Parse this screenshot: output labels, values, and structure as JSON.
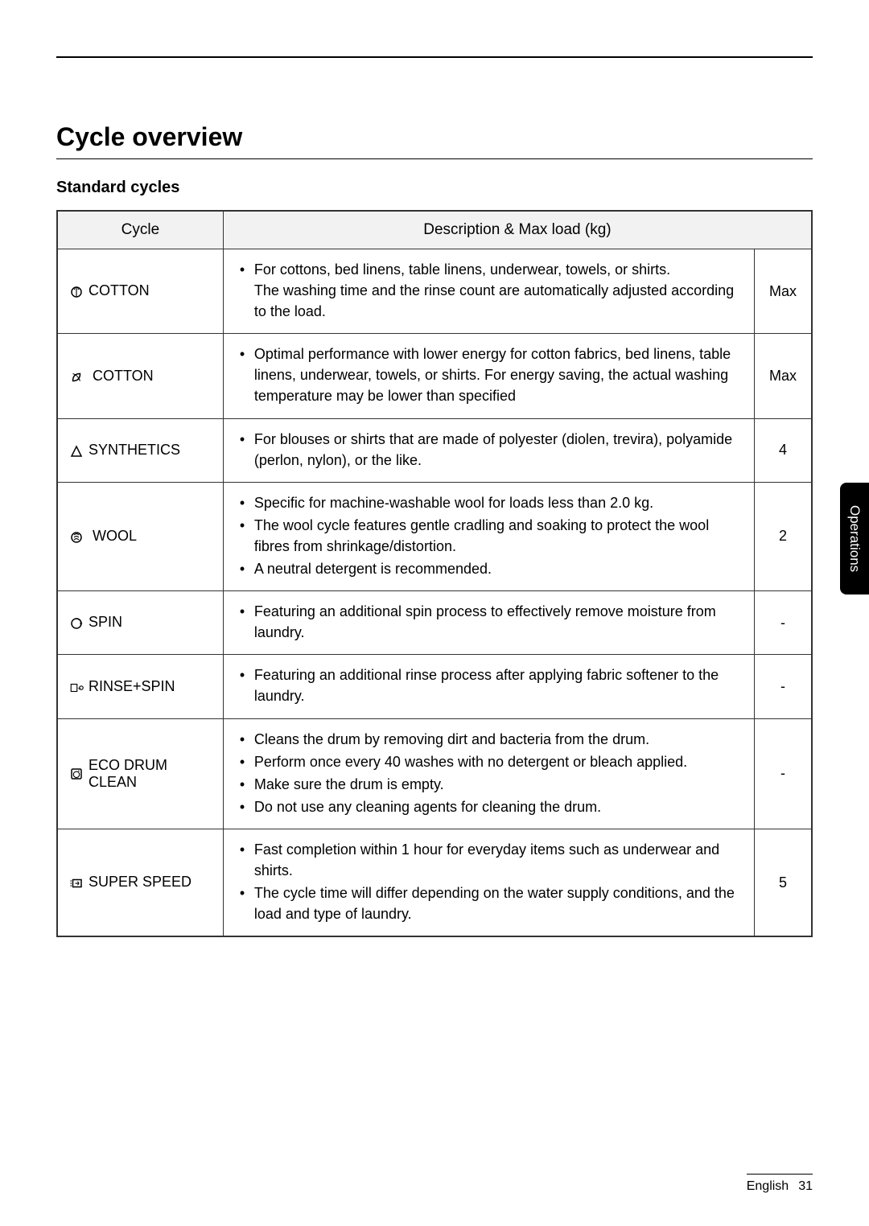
{
  "headings": {
    "title": "Cycle overview",
    "subtitle": "Standard cycles"
  },
  "table": {
    "headers": {
      "cycle": "Cycle",
      "desc_load": "Description & Max load (kg)"
    },
    "rows": [
      {
        "icon": "cotton-circle-icon",
        "cycle": "COTTON",
        "bullets": [
          "For cottons, bed linens, table linens, underwear, towels, or shirts.\nThe washing time and the rinse count are automatically adjusted according to the load."
        ],
        "load": "Max"
      },
      {
        "icon": "eco-leaf-icon",
        "cycle": " COTTON",
        "bullets": [
          "Optimal performance with lower energy for cotton fabrics, bed linens, table linens, underwear, towels, or shirts. For energy saving, the actual washing temperature may be lower than specified"
        ],
        "load": "Max"
      },
      {
        "icon": "triangle-icon",
        "cycle": "SYNTHETICS",
        "bullets": [
          "For blouses or shirts that are made of polyester (diolen, trevira), polyamide (perlon, nylon), or the like."
        ],
        "load": "4"
      },
      {
        "icon": "wool-icon",
        "cycle": " WOOL",
        "bullets": [
          "Specific for machine-washable wool for loads less than 2.0 kg.",
          "The wool cycle features gentle cradling and soaking to protect the wool fibres from shrinkage/distortion.",
          "A neutral detergent is recommended."
        ],
        "load": "2"
      },
      {
        "icon": "spin-icon",
        "cycle": "SPIN",
        "bullets": [
          "Featuring an additional spin process to effectively remove moisture from laundry."
        ],
        "load": "-"
      },
      {
        "icon": "rinse-spin-icon",
        "cycle": "RINSE+SPIN",
        "bullets": [
          "Featuring an additional rinse process after applying fabric softener to the laundry."
        ],
        "load": "-"
      },
      {
        "icon": "drum-icon",
        "cycle": "ECO DRUM CLEAN",
        "bullets": [
          "Cleans the drum by removing dirt and bacteria from the drum.",
          "Perform once every 40 washes with no detergent or bleach applied.",
          "Make sure the drum is empty.",
          "Do not use any cleaning agents for cleaning the drum."
        ],
        "load": "-"
      },
      {
        "icon": "speed-icon",
        "cycle": "SUPER SPEED",
        "bullets": [
          "Fast completion within 1 hour for everyday items such as underwear and shirts.",
          "The cycle time will differ depending on the water supply conditions, and the load and type of laundry."
        ],
        "load": "5"
      }
    ]
  },
  "sidebar": {
    "label": "Operations"
  },
  "footer": {
    "lang": "English",
    "page": "31"
  }
}
